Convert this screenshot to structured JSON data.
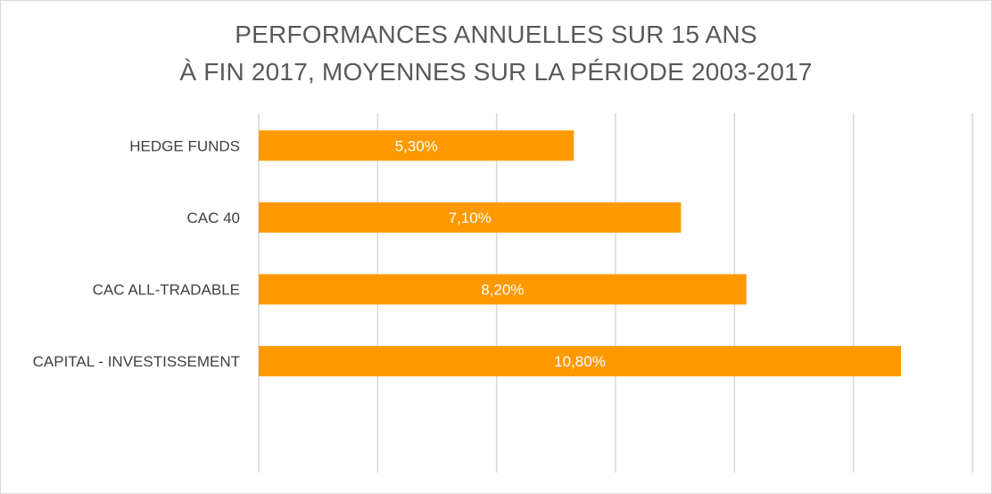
{
  "chart_data": {
    "type": "bar",
    "orientation": "horizontal",
    "title_lines": [
      "PERFORMANCES ANNUELLES SUR 15 ANS",
      "À FIN 2017, MOYENNES SUR LA PÉRIODE 2003-2017"
    ],
    "categories": [
      "HEDGE FUNDS",
      "CAC 40",
      "CAC ALL-TRADABLE",
      "CAPITAL - INVESTISSEMENT"
    ],
    "values": [
      5.3,
      7.1,
      8.2,
      10.8
    ],
    "data_labels": [
      "5,30%",
      "7,10%",
      "8,20%",
      "10,80%"
    ],
    "xlim": [
      0,
      12
    ],
    "grid": true,
    "legend": "none",
    "bar_color": "#ff9900",
    "grid_color": "#d9d9d9"
  }
}
